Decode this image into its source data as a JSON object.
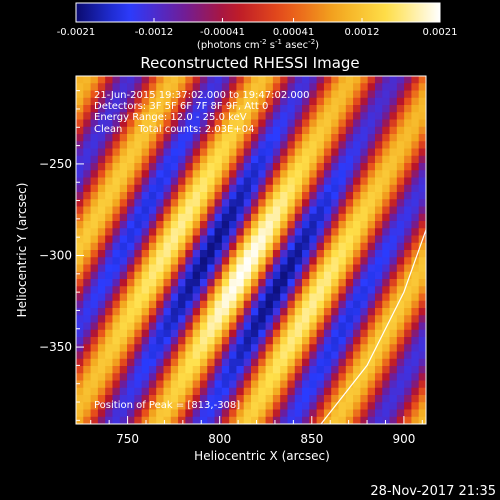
{
  "chart_data": {
    "type": "heatmap",
    "title": "Reconstructed RHESSI Image",
    "colorbar": {
      "ticks": [
        "-0.0021",
        "-0.0012",
        "-0.00041",
        "0.00041",
        "0.0012",
        "0.0021"
      ],
      "range": [
        -0.0021,
        0.0021
      ],
      "unit_label_parts": [
        "(photons cm",
        "-2",
        " s",
        "-1",
        " asec",
        "-2",
        ")"
      ],
      "colormap": [
        "#0a0a6e",
        "#2a3cff",
        "#6a1ea0",
        "#b8142a",
        "#e8501a",
        "#f3a81e",
        "#ffe04a",
        "#ffffff"
      ]
    },
    "info_lines": [
      "21-Jun-2015 19:37:02.000 to 19:47:02.000",
      "Detectors: 3F 5F 6F 7F 8F 9F, Att 0",
      "Energy Range: 12.0 - 25.0 keV",
      "Clean     Total counts: 2.03E+04"
    ],
    "peak_note": "Position of Peak = [813,-308]",
    "xlabel": "Heliocentric X (arcsec)",
    "ylabel": "Heliocentric Y (arcsec)",
    "x_ticks": [
      750,
      800,
      850,
      900
    ],
    "y_ticks": [
      -250,
      -300,
      -350
    ],
    "xlim": [
      722,
      912
    ],
    "ylim": [
      -392,
      -202
    ],
    "peak": [
      813,
      -308
    ],
    "stripe_angle_deg": 61,
    "stripe_period_arcsec": 42,
    "limb_curve": [
      [
        855,
        -392
      ],
      [
        880,
        -360
      ],
      [
        900,
        -320
      ],
      [
        912,
        -286
      ]
    ],
    "timestamp": "28-Nov-2017 21:35"
  }
}
